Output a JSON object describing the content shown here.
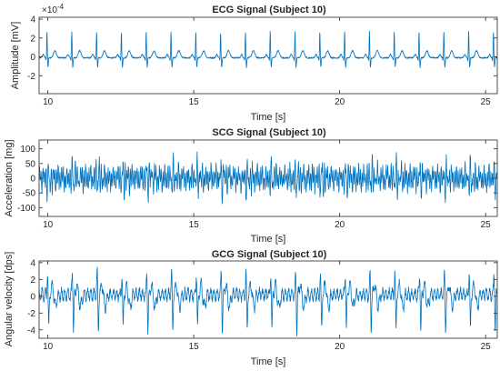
{
  "chart_data": [
    {
      "type": "line",
      "title": "ECG Signal (Subject 10)",
      "xlabel": "Time [s]",
      "ylabel": "Amplitude [mV]",
      "y_exponent_label": "×10",
      "y_exponent": "-4",
      "xlim": [
        9.7,
        25.4
      ],
      "ylim": [
        -3.9,
        4.2
      ],
      "xticks": [
        10,
        15,
        20,
        25
      ],
      "yticks": [
        -2,
        0,
        2,
        4
      ],
      "color": "#0072BD",
      "waveform": "ecg",
      "beat_interval_s": 0.85,
      "baseline": -0.1,
      "r_peak": 2.8,
      "s_trough": -1.0
    },
    {
      "type": "line",
      "title": "SCG Signal (Subject 10)",
      "xlabel": "Time [s]",
      "ylabel": "Acceleration [mg]",
      "xlim": [
        9.7,
        25.4
      ],
      "ylim": [
        -130,
        130
      ],
      "xticks": [
        10,
        15,
        20,
        25
      ],
      "yticks": [
        -100,
        -50,
        0,
        50,
        100
      ],
      "color": "#0072BD",
      "waveform": "scg",
      "beat_interval_s": 0.85,
      "amplitude": 45
    },
    {
      "type": "line",
      "title": "GCG Signal (Subject 10)",
      "xlabel": "Time [s]",
      "ylabel": "Angular velocity [dps]",
      "xlim": [
        9.7,
        25.4
      ],
      "ylim": [
        -5,
        4.2
      ],
      "xticks": [
        10,
        15,
        20,
        25
      ],
      "yticks": [
        -4,
        -2,
        0,
        2,
        4
      ],
      "color": "#0072BD",
      "waveform": "gcg",
      "beat_interval_s": 0.85,
      "peak": 2.8,
      "trough": -4.0
    }
  ]
}
